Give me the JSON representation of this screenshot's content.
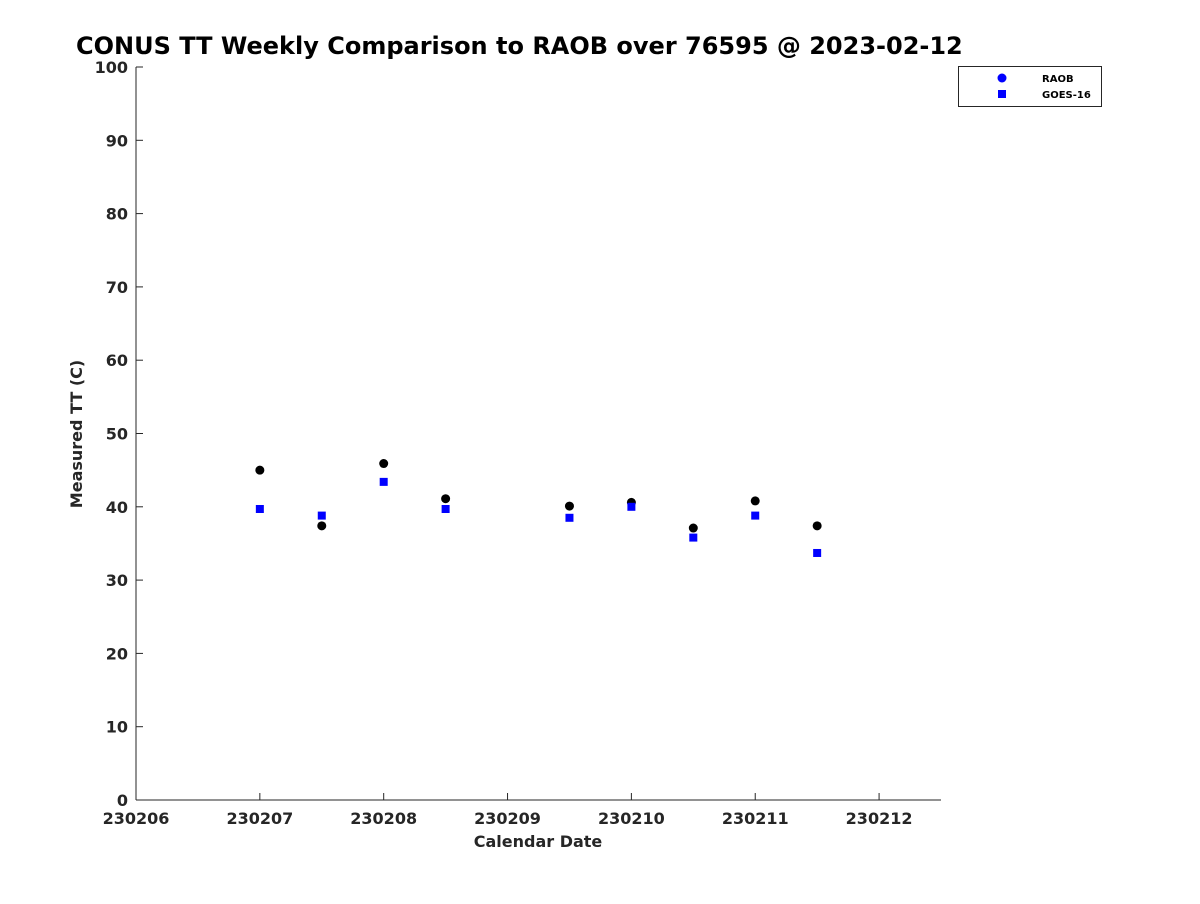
{
  "chart_data": {
    "type": "scatter",
    "title": "CONUS TT Weekly Comparison to RAOB over 76595 @ 2023-02-12",
    "xlabel": "Calendar Date",
    "ylabel": "Measured TT (C)",
    "xlim": [
      230206,
      230212.5
    ],
    "ylim": [
      0,
      100
    ],
    "x_ticks": [
      230206,
      230207,
      230208,
      230209,
      230210,
      230211,
      230212
    ],
    "x_tick_labels": [
      "230206",
      "230207",
      "230208",
      "230209",
      "230210",
      "230211",
      "230212"
    ],
    "y_ticks": [
      0,
      10,
      20,
      30,
      40,
      50,
      60,
      70,
      80,
      90,
      100
    ],
    "y_tick_labels": [
      "0",
      "10",
      "20",
      "30",
      "40",
      "50",
      "60",
      "70",
      "80",
      "90",
      "100"
    ],
    "grid": false,
    "legend_position": "top-right",
    "series": [
      {
        "name": "RAOB",
        "marker": "circle",
        "color": "#000000",
        "legend_color": "#0000ff",
        "x": [
          230207,
          230207.5,
          230208,
          230208.5,
          230209.5,
          230210,
          230210.5,
          230211,
          230211.5
        ],
        "y": [
          45.0,
          37.4,
          45.9,
          41.1,
          40.1,
          40.6,
          37.1,
          40.8,
          37.4
        ]
      },
      {
        "name": "GOES-16",
        "marker": "square",
        "color": "#0000ff",
        "legend_color": "#0000ff",
        "x": [
          230207,
          230207.5,
          230208,
          230208.5,
          230209.5,
          230210,
          230210.5,
          230211,
          230211.5
        ],
        "y": [
          39.7,
          38.8,
          43.4,
          39.7,
          38.5,
          40.0,
          35.8,
          38.8,
          33.7
        ]
      }
    ]
  }
}
